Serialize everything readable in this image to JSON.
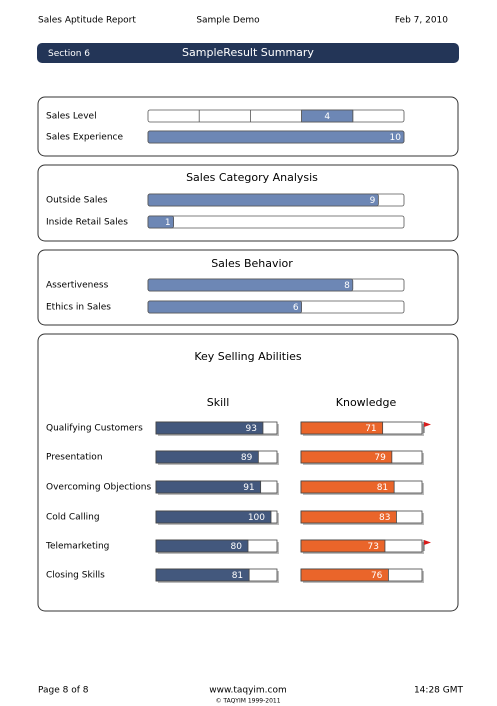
{
  "header": {
    "title": "Sales Aptitude Report",
    "subtitle": "Sample Demo",
    "date": "Feb 7, 2010"
  },
  "section": {
    "label": "Section 6",
    "title": "SampleResult Summary"
  },
  "level": {
    "rows": [
      {
        "label": "Sales Level",
        "value": 4,
        "display": "segments"
      },
      {
        "label": "Sales Experience",
        "value": 10
      }
    ]
  },
  "category": {
    "title": "Sales Category Analysis",
    "rows": [
      {
        "label": "Outside Sales",
        "value": 9
      },
      {
        "label": "Inside Retail Sales",
        "value": 1
      }
    ]
  },
  "behavior": {
    "title": "Sales Behavior",
    "rows": [
      {
        "label": "Assertiveness",
        "value": 8
      },
      {
        "label": "Ethics in Sales",
        "value": 6
      }
    ]
  },
  "abilities": {
    "title": "Key Selling Abilities",
    "skill_header": "Skill",
    "knowledge_header": "Knowledge",
    "skill_color": "#43587d",
    "knowledge_color": "#ea652a",
    "rows": [
      {
        "label": "Qualifying Customers",
        "skill": 93,
        "knowledge": 71,
        "flag": true
      },
      {
        "label": "Presentation",
        "skill": 89,
        "knowledge": 79
      },
      {
        "label": "Overcoming Objections",
        "skill": 91,
        "knowledge": 81
      },
      {
        "label": "Cold Calling",
        "skill": 100,
        "knowledge": 83
      },
      {
        "label": "Telemarketing",
        "skill": 80,
        "knowledge": 73,
        "flag": true
      },
      {
        "label": "Closing Skills",
        "skill": 81,
        "knowledge": 76
      }
    ]
  },
  "footer": {
    "page": "Page 8 of 8",
    "site": "www.taqyim.com",
    "copyright": "© TAQYIM 1999-2011",
    "time": "14:28 GMT"
  }
}
